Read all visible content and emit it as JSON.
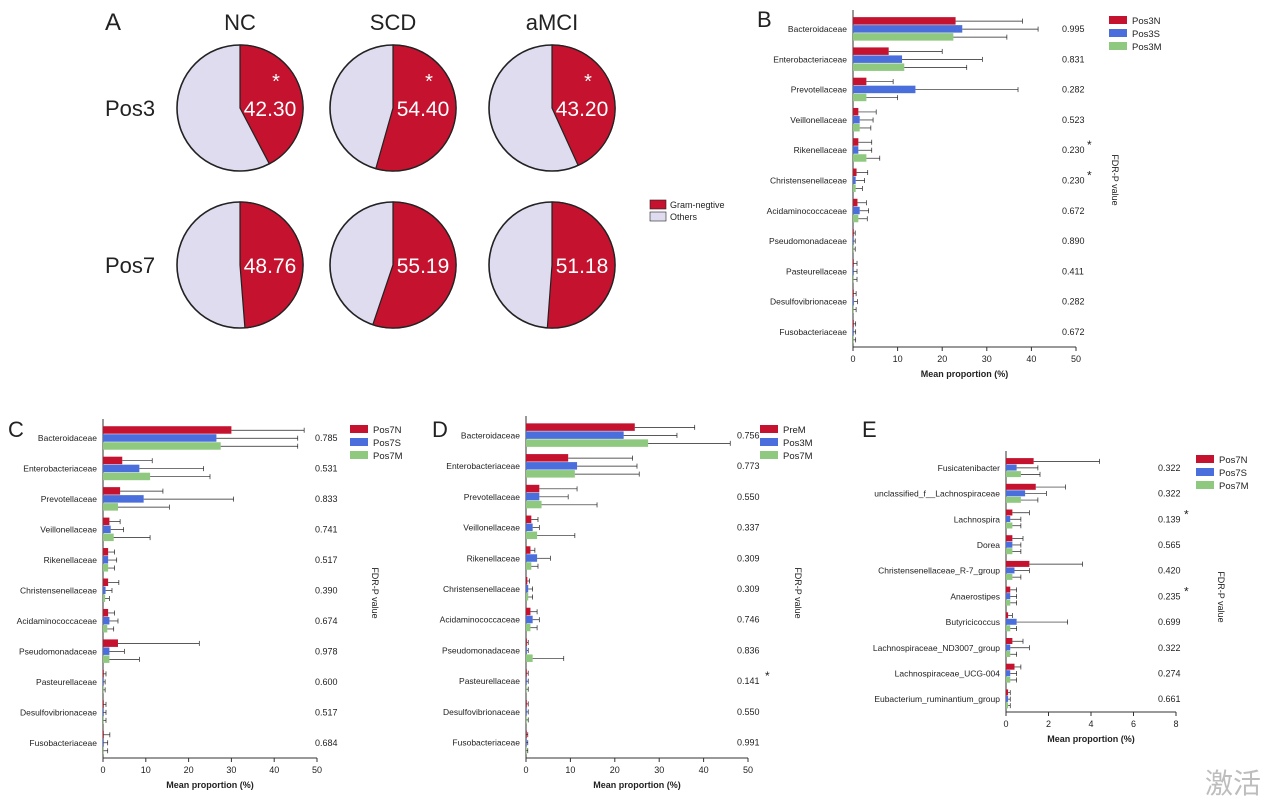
{
  "colors": {
    "red": "#c4122f",
    "blue": "#4a6fdc",
    "green": "#8fc97f",
    "lavender": "#dedcee",
    "axis": "#333333"
  },
  "watermark": "激活",
  "panel_a": {
    "letter": "A",
    "groups": [
      "NC",
      "SCD",
      "aMCI"
    ],
    "rows": [
      {
        "label": "Pos3",
        "values": [
          42.3,
          54.4,
          43.2
        ],
        "labels": [
          "42.30",
          "54.40",
          "43.20"
        ],
        "star": "*"
      },
      {
        "label": "Pos7",
        "values": [
          48.76,
          55.19,
          51.18
        ],
        "labels": [
          "48.76",
          "55.19",
          "51.18"
        ],
        "star": ""
      }
    ],
    "legend": [
      "Gram-negtive",
      "Others"
    ]
  },
  "chart_data": [
    {
      "panel": "B",
      "type": "bar",
      "orientation": "horizontal",
      "xlabel": "Mean proportion (%)",
      "xlim": [
        0,
        50
      ],
      "xticks": [
        "0",
        "10",
        "20",
        "30",
        "40",
        "50"
      ],
      "side_label": "FDR-P value",
      "categories": [
        "Bacteroidaceae",
        "Enterobacteriaceae",
        "Prevotellaceae",
        "Veillonellaceae",
        "Rikenellaceae",
        "Christensenellaceae",
        "Acidaminococcaceae",
        "Pseudomonadaceae",
        "Pasteurellaceae",
        "Desulfovibrionaceae",
        "Fusobacteriaceae"
      ],
      "pvalues": [
        "0.995",
        "0.831",
        "0.282",
        "0.523",
        "0.230",
        "0.230",
        "0.672",
        "0.890",
        "0.411",
        "0.282",
        "0.672"
      ],
      "stars": [
        "",
        "",
        "",
        "",
        "*",
        "*",
        "",
        "",
        "",
        "",
        ""
      ],
      "series": [
        {
          "name": "Pos3N",
          "values": [
            23,
            8,
            3,
            1.2,
            1.2,
            0.8,
            1,
            0.1,
            0.1,
            0.1,
            0.1
          ],
          "errors": [
            15,
            12,
            6,
            4,
            3,
            2.5,
            2,
            0.4,
            0.8,
            0.6,
            0.5
          ]
        },
        {
          "name": "Pos3S",
          "values": [
            24.5,
            11,
            14,
            1.5,
            1.2,
            0.6,
            1.5,
            0.1,
            0.1,
            0.2,
            0.1
          ],
          "errors": [
            17,
            18,
            23,
            3,
            3,
            2,
            2,
            0.4,
            0.8,
            0.8,
            0.5
          ]
        },
        {
          "name": "Pos3M",
          "values": [
            22.5,
            11.5,
            3,
            1.5,
            3,
            0.6,
            1.2,
            0.1,
            0.1,
            0.1,
            0.1
          ],
          "errors": [
            12,
            14,
            7,
            2.5,
            3,
            1.5,
            2,
            0.4,
            0.8,
            0.6,
            0.5
          ]
        }
      ]
    },
    {
      "panel": "C",
      "type": "bar",
      "orientation": "horizontal",
      "xlabel": "Mean proportion (%)",
      "xlim": [
        0,
        50
      ],
      "xticks": [
        "0",
        "10",
        "20",
        "30",
        "40",
        "50"
      ],
      "side_label": "FDR-P value",
      "categories": [
        "Bacteroidaceae",
        "Enterobacteriaceae",
        "Prevotellaceae",
        "Veillonellaceae",
        "Rikenellaceae",
        "Christensenellaceae",
        "Acidaminococcaceae",
        "Pseudomonadaceae",
        "Pasteurellaceae",
        "Desulfovibrionaceae",
        "Fusobacteriaceae"
      ],
      "pvalues": [
        "0.785",
        "0.531",
        "0.833",
        "0.741",
        "0.517",
        "0.390",
        "0.674",
        "0.978",
        "0.600",
        "0.517",
        "0.684"
      ],
      "stars": [
        "",
        "",
        "",
        "",
        "",
        "",
        "",
        "",
        "",
        "",
        ""
      ],
      "series": [
        {
          "name": "Pos7N",
          "values": [
            30,
            4.5,
            4,
            1.5,
            1.2,
            1.2,
            1.2,
            3.5,
            0.1,
            0.1,
            0.1
          ],
          "errors": [
            17,
            7,
            10,
            2.5,
            1.5,
            2.5,
            1.5,
            19,
            0.6,
            0.6,
            1.5
          ]
        },
        {
          "name": "Pos7S",
          "values": [
            26.5,
            8.5,
            9.5,
            1.8,
            1.2,
            0.6,
            1.5,
            1.5,
            0.1,
            0.1,
            0.1
          ],
          "errors": [
            19,
            15,
            21,
            3,
            2,
            1.5,
            2,
            3.5,
            0.4,
            0.6,
            1
          ]
        },
        {
          "name": "Pos7M",
          "values": [
            27.5,
            11,
            3.5,
            2.5,
            1.2,
            0.5,
            1,
            1.5,
            0.1,
            0.1,
            0.1
          ],
          "errors": [
            18,
            14,
            12,
            8.5,
            1.5,
            1,
            1.5,
            7,
            0.4,
            0.6,
            1
          ]
        }
      ]
    },
    {
      "panel": "D",
      "type": "bar",
      "orientation": "horizontal",
      "xlabel": "Mean proportion (%)",
      "xlim": [
        0,
        50
      ],
      "xticks": [
        "0",
        "10",
        "20",
        "30",
        "40",
        "50"
      ],
      "side_label": "FDR-P value",
      "categories": [
        "Bacteroidaceae",
        "Enterobacteriaceae",
        "Prevotellaceae",
        "Veillonellaceae",
        "Rikenellaceae",
        "Christensenellaceae",
        "Acidaminococcaceae",
        "Pseudomonadaceae",
        "Pasteurellaceae",
        "Desulfovibrionaceae",
        "Fusobacteriaceae"
      ],
      "pvalues": [
        "0.756",
        "0.773",
        "0.550",
        "0.337",
        "0.309",
        "0.309",
        "0.746",
        "0.836",
        "0.141",
        "0.550",
        "0.991"
      ],
      "stars": [
        "",
        "",
        "",
        "",
        "",
        "",
        "",
        "",
        "*",
        "",
        ""
      ],
      "series": [
        {
          "name": "PreM",
          "values": [
            24.5,
            9.5,
            3,
            1.2,
            1,
            0.3,
            1,
            0.2,
            0.1,
            0.1,
            0.1
          ],
          "errors": [
            13.5,
            14.5,
            8.5,
            1.5,
            1,
            0.5,
            1.5,
            0.3,
            0.4,
            0.4,
            0.3
          ]
        },
        {
          "name": "Pos3M",
          "values": [
            22,
            11.5,
            3,
            1.5,
            2.5,
            0.5,
            1.5,
            0.2,
            0.1,
            0.1,
            0.1
          ],
          "errors": [
            12,
            13.5,
            6.5,
            1.5,
            3,
            1,
            1.5,
            0.3,
            0.4,
            0.4,
            0.3
          ]
        },
        {
          "name": "Pos7M",
          "values": [
            27.5,
            11,
            3.5,
            2.5,
            1.2,
            0.5,
            1,
            1.5,
            0.1,
            0.1,
            0.1
          ],
          "errors": [
            18.5,
            14.5,
            12.5,
            8.5,
            1.5,
            1,
            1.5,
            7,
            0.4,
            0.4,
            0.3
          ]
        }
      ]
    },
    {
      "panel": "E",
      "type": "bar",
      "orientation": "horizontal",
      "xlabel": "Mean proportion (%)",
      "xlim": [
        0,
        8
      ],
      "xticks": [
        "0",
        "2",
        "4",
        "6",
        "8"
      ],
      "side_label": "FDR-P value",
      "categories": [
        "Fusicatenibacter",
        "unclassified_f__Lachnospiraceae",
        "Lachnospira",
        "Dorea",
        "Christensenellaceae_R-7_group",
        "Anaerostipes",
        "Butyricicoccus",
        "Lachnospiraceae_ND3007_group",
        "Lachnospiraceae_UCG-004",
        "Eubacterium_ruminantium_group"
      ],
      "pvalues": [
        "0.322",
        "0.322",
        "0.139",
        "0.565",
        "0.420",
        "0.235",
        "0.699",
        "0.322",
        "0.274",
        "0.661"
      ],
      "stars": [
        "",
        "",
        "*",
        "",
        "",
        "*",
        "",
        "",
        "",
        ""
      ],
      "series": [
        {
          "name": "Pos7N",
          "values": [
            1.3,
            1.4,
            0.3,
            0.3,
            1.1,
            0.2,
            0.1,
            0.3,
            0.4,
            0.1
          ],
          "errors": [
            3.1,
            1.4,
            0.8,
            0.5,
            2.5,
            0.3,
            0.2,
            0.5,
            0.3,
            0.1
          ]
        },
        {
          "name": "Pos7S",
          "values": [
            0.5,
            0.9,
            0.2,
            0.3,
            0.4,
            0.2,
            0.5,
            0.2,
            0.2,
            0.1
          ],
          "errors": [
            1,
            1,
            0.5,
            0.4,
            0.7,
            0.3,
            2.4,
            0.9,
            0.3,
            0.1
          ]
        },
        {
          "name": "Pos7M",
          "values": [
            0.7,
            0.7,
            0.3,
            0.3,
            0.3,
            0.2,
            0.2,
            0.2,
            0.2,
            0.1
          ],
          "errors": [
            0.9,
            0.8,
            0.4,
            0.4,
            0.4,
            0.3,
            0.3,
            0.3,
            0.3,
            0.1
          ]
        }
      ]
    }
  ]
}
